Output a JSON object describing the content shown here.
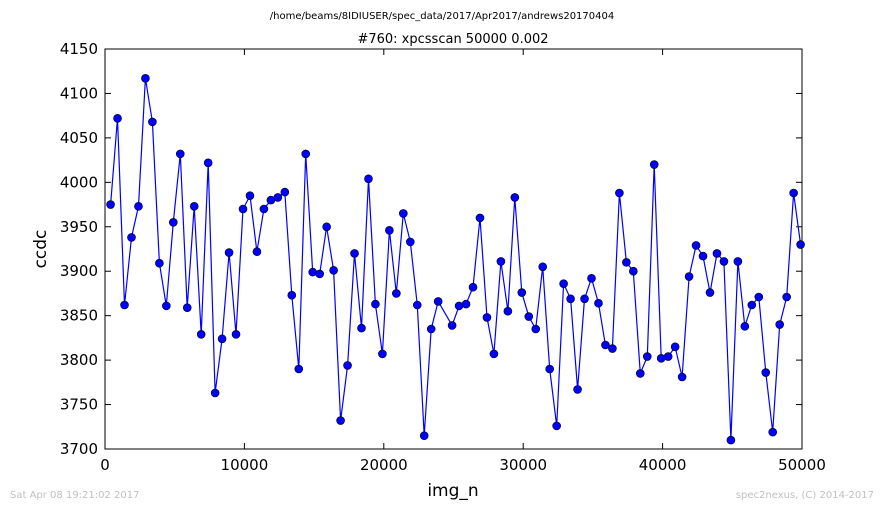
{
  "chart_data": {
    "type": "line",
    "suptitle": "/home/beams/8IDIUSER/spec_data/2017/Apr2017/andrews20170404",
    "title": "#760: xpcsscan 50000 0.002",
    "xlabel": "img_n",
    "ylabel": "ccdc",
    "xlim": [
      0,
      50000
    ],
    "ylim": [
      3700,
      4150
    ],
    "xticks": [
      0,
      10000,
      20000,
      30000,
      40000,
      50000
    ],
    "yticks": [
      3700,
      3750,
      3800,
      3850,
      3900,
      3950,
      4000,
      4050,
      4100,
      4150
    ],
    "grid": false,
    "line_color": "#0000ff",
    "marker_color": "#0000ff",
    "x": [
      400,
      900,
      1400,
      1900,
      2400,
      2900,
      3400,
      3900,
      4400,
      4900,
      5400,
      5900,
      6400,
      6900,
      7400,
      7900,
      8400,
      8900,
      9400,
      9900,
      10400,
      10900,
      11400,
      11900,
      12400,
      12900,
      13400,
      13900,
      14400,
      14900,
      15400,
      15900,
      16400,
      16900,
      17400,
      17900,
      18400,
      18900,
      19400,
      19900,
      20400,
      20900,
      21400,
      21900,
      22400,
      22900,
      23400,
      23900,
      24900,
      25400,
      25900,
      26400,
      26900,
      27400,
      27900,
      28400,
      28900,
      29400,
      29900,
      30400,
      30900,
      31400,
      31900,
      32400,
      32900,
      33400,
      33900,
      34400,
      34900,
      35400,
      35900,
      36400,
      36900,
      37400,
      37900,
      38400,
      38900,
      39400,
      39900,
      40400,
      40900,
      41400,
      41900,
      42400,
      42900,
      43400,
      43900,
      44400,
      44900,
      45400,
      45900,
      46400,
      46900,
      47400,
      47900,
      48400,
      48900,
      49400,
      49900
    ],
    "y": [
      3975,
      4072,
      3862,
      3938,
      3973,
      4117,
      4068,
      3909,
      3861,
      3955,
      4032,
      3859,
      3973,
      3829,
      4022,
      3763,
      3824,
      3921,
      3829,
      3970,
      3985,
      3922,
      3970,
      3980,
      3983,
      3989,
      3873,
      3790,
      4032,
      3899,
      3897,
      3950,
      3901,
      3732,
      3794,
      3920,
      3836,
      4004,
      3863,
      3807,
      3946,
      3875,
      3965,
      3933,
      3862,
      3715,
      3835,
      3866,
      3839,
      3861,
      3863,
      3882,
      3960,
      3848,
      3807,
      3911,
      3855,
      3983,
      3876,
      3849,
      3835,
      3905,
      3790,
      3726,
      3886,
      3869,
      3767,
      3869,
      3892,
      3864,
      3817,
      3813,
      3988,
      3910,
      3900,
      3785,
      3804,
      4020,
      3802,
      3804,
      3815,
      3781,
      3894,
      3929,
      3917,
      3876,
      3920,
      3911,
      3710,
      3911,
      3838,
      3862,
      3871,
      3786,
      3719,
      3840,
      3871,
      3988,
      3930
    ]
  },
  "footer": {
    "timestamp": "Sat Apr 08 19:21:02 2017",
    "credit": "spec2nexus, (C) 2014-2017"
  }
}
